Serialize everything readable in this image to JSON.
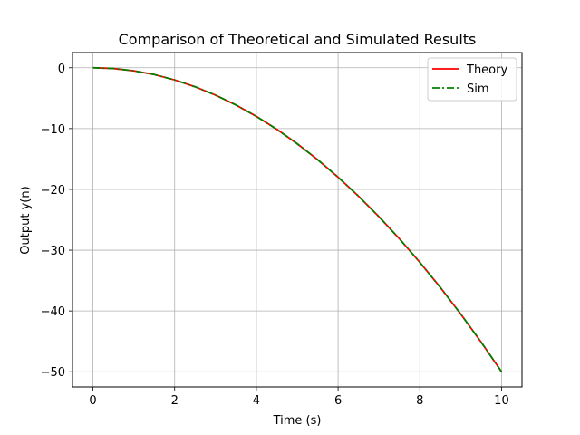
{
  "chart_data": {
    "type": "line",
    "title": "Comparison of Theoretical and Simulated Results",
    "xlabel": "Time (s)",
    "ylabel": "Output y(n)",
    "xlim": [
      -0.5,
      10.5
    ],
    "ylim": [
      -52.5,
      2.5
    ],
    "xticks": [
      0,
      2,
      4,
      6,
      8,
      10
    ],
    "xtick_labels": [
      "0",
      "2",
      "4",
      "6",
      "8",
      "10"
    ],
    "yticks": [
      0,
      -10,
      -20,
      -30,
      -40,
      -50
    ],
    "ytick_labels": [
      "0",
      "−10",
      "−20",
      "−30",
      "−40",
      "−50"
    ],
    "grid": true,
    "legend_position": "top-right",
    "series": [
      {
        "name": "Theory",
        "color": "#ff0000",
        "style": "solid",
        "x": [
          0,
          0.5,
          1,
          1.5,
          2,
          2.5,
          3,
          3.5,
          4,
          4.5,
          5,
          5.5,
          6,
          6.5,
          7,
          7.5,
          8,
          8.5,
          9,
          9.5,
          10
        ],
        "y": [
          0,
          -0.12,
          -0.5,
          -1.12,
          -2.0,
          -3.12,
          -4.5,
          -6.12,
          -8.0,
          -10.12,
          -12.5,
          -15.12,
          -18.0,
          -21.12,
          -24.5,
          -28.12,
          -32.0,
          -36.12,
          -40.5,
          -45.12,
          -50.0
        ]
      },
      {
        "name": "Sim",
        "color": "#008000",
        "style": "dashdot",
        "x": [
          0,
          0.5,
          1,
          1.5,
          2,
          2.5,
          3,
          3.5,
          4,
          4.5,
          5,
          5.5,
          6,
          6.5,
          7,
          7.5,
          8,
          8.5,
          9,
          9.5,
          10
        ],
        "y": [
          0,
          -0.12,
          -0.5,
          -1.12,
          -2.0,
          -3.12,
          -4.5,
          -6.12,
          -8.0,
          -10.12,
          -12.5,
          -15.12,
          -18.0,
          -21.12,
          -24.5,
          -28.12,
          -32.0,
          -36.12,
          -40.5,
          -45.12,
          -50.0
        ]
      }
    ]
  }
}
